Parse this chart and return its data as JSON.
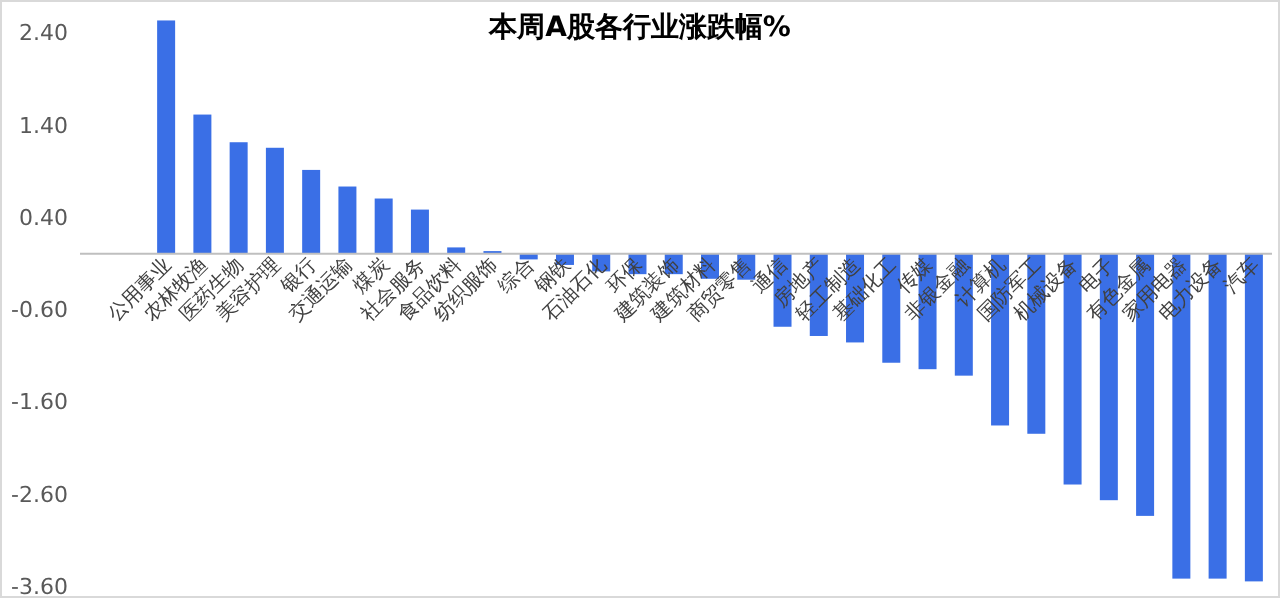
{
  "chart_data": {
    "type": "bar",
    "title": "本周A股各行业涨跌幅%",
    "categories": [
      "公用事业",
      "农林牧渔",
      "医药生物",
      "美容护理",
      "银行",
      "交通运输",
      "煤炭",
      "社会服务",
      "食品饮料",
      "纺织服饰",
      "综合",
      "钢铁",
      "石油石化",
      "环保",
      "建筑装饰",
      "建筑材料",
      "商贸零售",
      "通信",
      "房地产",
      "轻工制造",
      "基础化工",
      "传媒",
      "非银金融",
      "计算机",
      "国防军工",
      "机械设备",
      "电子",
      "有色金属",
      "家用电器",
      "电力设备",
      "汽车"
    ],
    "values": [
      2.53,
      1.51,
      1.21,
      1.15,
      0.91,
      0.73,
      0.6,
      0.48,
      0.07,
      0.03,
      -0.06,
      -0.12,
      -0.19,
      -0.22,
      -0.22,
      -0.27,
      -0.28,
      -0.79,
      -0.89,
      -0.96,
      -1.18,
      -1.25,
      -1.32,
      -1.86,
      -1.95,
      -2.5,
      -2.67,
      -2.84,
      -3.52,
      -3.52,
      -3.55
    ],
    "color": "#3a6fe6",
    "ylim": [
      -3.6,
      2.6
    ],
    "yticks": [
      {
        "value": 2.4,
        "label": "2.40"
      },
      {
        "value": 1.4,
        "label": "1.40"
      },
      {
        "value": 0.4,
        "label": "0.40"
      },
      {
        "value": -0.6,
        "label": "-0.60"
      },
      {
        "value": -1.6,
        "label": "-1.60"
      },
      {
        "value": -2.6,
        "label": "-2.60"
      },
      {
        "value": -3.6,
        "label": "-3.60"
      }
    ],
    "grid": false
  }
}
